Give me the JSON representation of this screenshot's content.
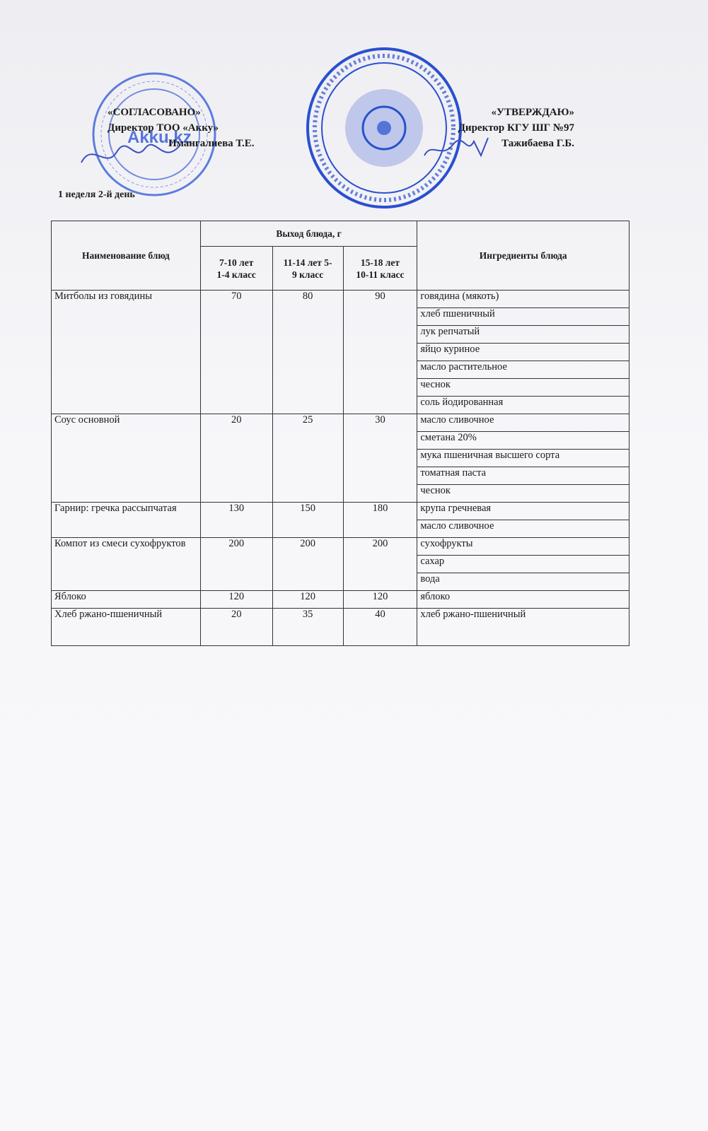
{
  "approval_left": {
    "title": "«СОГЛАСОВАНО»",
    "position": "Директор ТОО «Акку»",
    "name": "Имангалиева Т.Е.",
    "stamp_text": "Akku.kz"
  },
  "approval_right": {
    "title": "«УТВЕРЖДАЮ»",
    "position": "Директор КГУ ШГ №97",
    "name": "Тажибаева Г.Б."
  },
  "day_label": "1 неделя 2-й день",
  "table": {
    "headers": {
      "dish": "Наименование блюд",
      "yield": "Выход блюда, г",
      "age1": [
        "7-10 лет",
        "1-4 класс"
      ],
      "age2": [
        "11-14 лет 5-",
        "9 класс"
      ],
      "age3": [
        "15-18 лет",
        "10-11 класс"
      ],
      "ingredients": "Ингредиенты блюда"
    },
    "rows": [
      {
        "dish": "Митболы из говядины",
        "v1": "70",
        "v2": "80",
        "v3": "90",
        "ingredients": [
          "говядина (мякоть)",
          "хлеб пшеничный",
          "лук репчатый",
          "яйцо куриное",
          "масло растительное",
          "чеснок",
          "соль йодированная"
        ]
      },
      {
        "dish": "Соус основной",
        "v1": "20",
        "v2": "25",
        "v3": "30",
        "ingredients": [
          "масло сливочное",
          "сметана 20%",
          "мука пшеничная высшего сорта",
          "томатная паста",
          "чеснок"
        ]
      },
      {
        "dish": "Гарнир: гречка рассыпчатая",
        "v1": "130",
        "v2": "150",
        "v3": "180",
        "ingredients": [
          "крупа гречневая",
          "масло сливочное"
        ]
      },
      {
        "dish": "Компот из смеси сухофруктов",
        "v1": "200",
        "v2": "200",
        "v3": "200",
        "ingredients": [
          "сухофрукты",
          "сахар",
          "вода"
        ]
      },
      {
        "dish": "Яблоко",
        "v1": "120",
        "v2": "120",
        "v3": "120",
        "ingredients": [
          "яблоко"
        ]
      },
      {
        "dish": "Хлеб ржано-пшеничный",
        "v1": "20",
        "v2": "35",
        "v3": "40",
        "ingredients": [
          "хлеб ржано-пшеничный"
        ]
      }
    ]
  },
  "colors": {
    "stamp": "#2a4fd0",
    "text": "#1a1a1a"
  }
}
